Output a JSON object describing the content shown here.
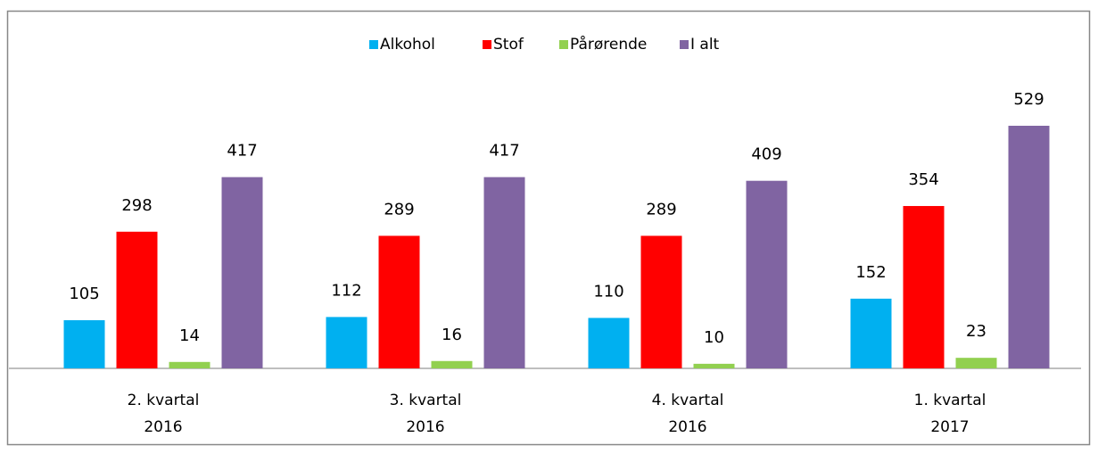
{
  "chart_data": {
    "type": "bar",
    "categories": [
      "2. kvartal 2016",
      "3. kvartal 2016",
      "4. kvartal 2016",
      "1. kvartal 2017"
    ],
    "series": [
      {
        "name": "Alkohol",
        "color": "#00b0f0",
        "values": [
          105,
          112,
          110,
          152
        ]
      },
      {
        "name": "Stof",
        "color": "#ff0000",
        "values": [
          298,
          289,
          289,
          354
        ]
      },
      {
        "name": "Pårørende",
        "color": "#92d050",
        "values": [
          14,
          16,
          10,
          23
        ]
      },
      {
        "name": "I alt",
        "color": "#8064a2",
        "values": [
          417,
          417,
          409,
          529
        ]
      }
    ],
    "legend": "top"
  }
}
